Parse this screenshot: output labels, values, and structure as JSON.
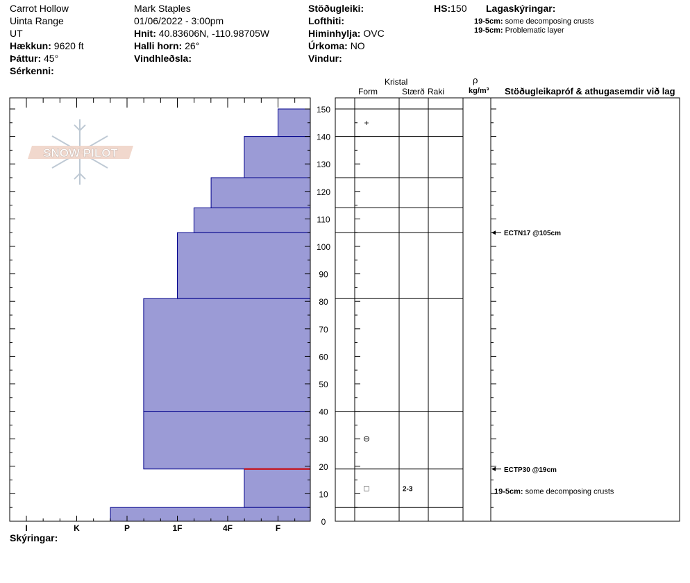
{
  "header": {
    "location": "Carrot Hollow",
    "range": "Uinta Range",
    "state": "UT",
    "elevation_label": "Hækkun:",
    "elevation_value": "9620 ft",
    "aspect_label": "Þáttur:",
    "aspect_value": "45°",
    "features_label": "Sérkenni:",
    "observer": "Mark Staples",
    "datetime": "01/06/2022 - 3:00pm",
    "coords_label": "Hnit:",
    "coords_value": "40.83606N, -110.98705W",
    "slope_label": "Halli horn:",
    "slope_value": "26°",
    "wind_loading_label": "Vindhleðsla:",
    "stability_label": "Stöðugleiki:",
    "air_temp_label": "Lofthiti:",
    "sky_label": "Himinhylja:",
    "sky_value": "OVC",
    "precip_label": "Úrkoma:",
    "precip_value": "NO",
    "wind_label": "Vindur:",
    "hs_label": "HS:",
    "hs_value": "150",
    "layer_notes_label": "Lagaskýringar:",
    "layer_notes": [
      {
        "depth": "19-5cm:",
        "text": " some decomposing crusts"
      },
      {
        "depth": "19-5cm:",
        "text": " Problematic layer"
      }
    ]
  },
  "columns": {
    "crystal": "Kristal",
    "form": "Form",
    "size": "Stærð",
    "moisture": "Raki",
    "rho": "ρ",
    "density_unit": "kg/m³",
    "tests_header": "Stöðugleikapróf & athugasemdir við lag"
  },
  "legend_label": "Skýringar:",
  "logo_text": "SNOW PILOT",
  "colors": {
    "layer_fill": "#9b9bd6",
    "layer_edge": "#00008b",
    "problem_layer": "#cc0000"
  },
  "chart_data": {
    "type": "snow-profile",
    "y_label": "",
    "y_range": [
      0,
      150
    ],
    "y_ticks": [
      0,
      10,
      20,
      30,
      40,
      50,
      60,
      70,
      80,
      90,
      100,
      110,
      120,
      130,
      140,
      150
    ],
    "hardness_scale": [
      "I",
      "K",
      "P",
      "1F",
      "4F",
      "F"
    ],
    "hardness_positions": {
      "I": 1,
      "K": 2,
      "P": 3,
      "1F": 4,
      "4F": 5,
      "F": 6
    },
    "layers": [
      {
        "top": 150,
        "bottom": 140,
        "hardness": "F"
      },
      {
        "top": 140,
        "bottom": 125,
        "hardness": "F+"
      },
      {
        "top": 125,
        "bottom": 114,
        "hardness": "4F"
      },
      {
        "top": 114,
        "bottom": 105,
        "hardness": "4F-"
      },
      {
        "top": 105,
        "bottom": 81,
        "hardness": "1F+"
      },
      {
        "top": 81,
        "bottom": 40,
        "hardness": "1F-"
      },
      {
        "top": 40,
        "bottom": 19,
        "hardness": "1F-"
      },
      {
        "top": 19,
        "bottom": 5,
        "hardness": "F+"
      },
      {
        "top": 5,
        "bottom": 0,
        "hardness": "P-"
      }
    ],
    "hardness_values": {
      "F": 6,
      "F+": 5.33,
      "4F": 4.67,
      "4F-": 4.33,
      "1F+": 4.0,
      "1F-": 3.33,
      "P-": 2.67
    },
    "problem_layer_depth": 19,
    "grain_forms": [
      {
        "depth": 145,
        "symbol": "+",
        "name": "precipitation-particles"
      },
      {
        "depth": 30,
        "symbol": "⊖",
        "name": "rounding-faceted"
      },
      {
        "depth": 12,
        "symbol": "□",
        "name": "faceted-crystals",
        "size": "2-3"
      }
    ],
    "tests": [
      {
        "depth": 105,
        "label": "ECTN17 @105cm"
      },
      {
        "depth": 19,
        "label": "ECTP30 @19cm"
      }
    ],
    "comments": [
      {
        "depth": 11,
        "depth_label": "19-5cm:",
        "text": "some decomposing crusts"
      }
    ]
  }
}
